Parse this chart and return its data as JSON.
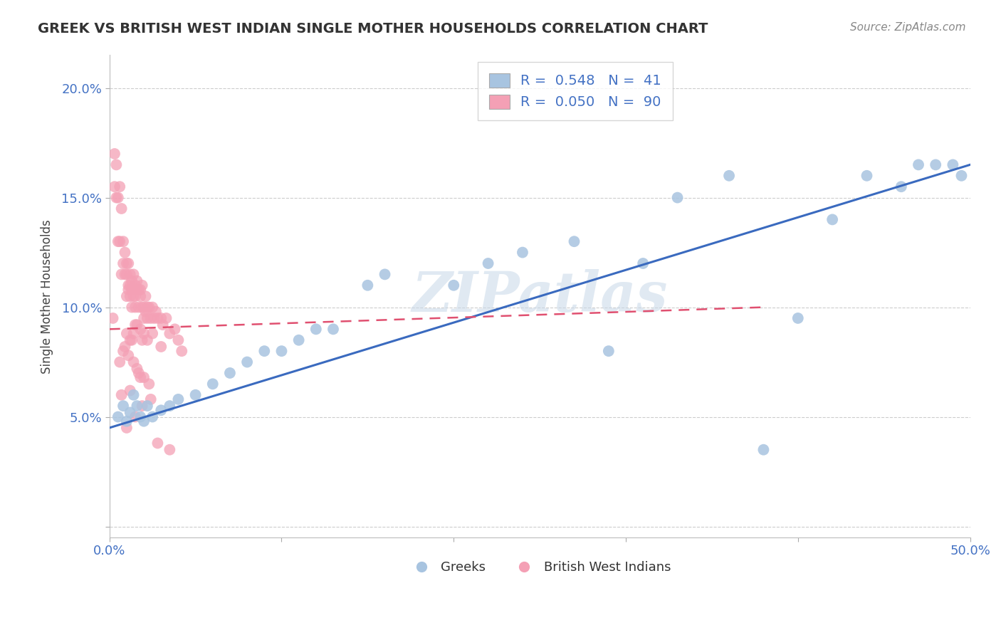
{
  "title": "GREEK VS BRITISH WEST INDIAN SINGLE MOTHER HOUSEHOLDS CORRELATION CHART",
  "source": "Source: ZipAtlas.com",
  "ylabel": "Single Mother Households",
  "xlim": [
    0.0,
    0.5
  ],
  "ylim": [
    -0.005,
    0.215
  ],
  "background_color": "#ffffff",
  "grid_color": "#cccccc",
  "watermark": "ZIPatlas",
  "blue_color": "#a8c4e0",
  "pink_color": "#f4a0b5",
  "blue_line_color": "#3a6abf",
  "pink_line_color": "#e05070",
  "legend_blue_R": "0.548",
  "legend_blue_N": "41",
  "legend_pink_R": "0.050",
  "legend_pink_N": "90",
  "blue_line_x0": 0.0,
  "blue_line_y0": 0.045,
  "blue_line_x1": 0.5,
  "blue_line_y1": 0.165,
  "pink_line_x0": 0.0,
  "pink_line_y0": 0.09,
  "pink_line_x1": 0.38,
  "pink_line_y1": 0.1,
  "blue_x": [
    0.005,
    0.008,
    0.01,
    0.012,
    0.014,
    0.016,
    0.018,
    0.02,
    0.022,
    0.025,
    0.03,
    0.035,
    0.04,
    0.05,
    0.06,
    0.07,
    0.08,
    0.09,
    0.1,
    0.11,
    0.12,
    0.13,
    0.15,
    0.16,
    0.2,
    0.22,
    0.24,
    0.27,
    0.29,
    0.31,
    0.33,
    0.36,
    0.38,
    0.4,
    0.42,
    0.44,
    0.46,
    0.47,
    0.48,
    0.49,
    0.495
  ],
  "blue_y": [
    0.05,
    0.055,
    0.048,
    0.052,
    0.06,
    0.055,
    0.05,
    0.048,
    0.055,
    0.05,
    0.053,
    0.055,
    0.058,
    0.06,
    0.065,
    0.07,
    0.075,
    0.08,
    0.08,
    0.085,
    0.09,
    0.09,
    0.11,
    0.115,
    0.11,
    0.12,
    0.125,
    0.13,
    0.08,
    0.12,
    0.15,
    0.16,
    0.035,
    0.095,
    0.14,
    0.16,
    0.155,
    0.165,
    0.165,
    0.165,
    0.16
  ],
  "pink_x": [
    0.002,
    0.003,
    0.003,
    0.004,
    0.004,
    0.005,
    0.005,
    0.006,
    0.006,
    0.007,
    0.007,
    0.008,
    0.008,
    0.009,
    0.009,
    0.01,
    0.01,
    0.01,
    0.011,
    0.011,
    0.011,
    0.012,
    0.012,
    0.012,
    0.013,
    0.013,
    0.013,
    0.014,
    0.014,
    0.014,
    0.015,
    0.015,
    0.015,
    0.016,
    0.016,
    0.017,
    0.017,
    0.018,
    0.018,
    0.019,
    0.019,
    0.02,
    0.02,
    0.021,
    0.021,
    0.022,
    0.022,
    0.023,
    0.024,
    0.025,
    0.026,
    0.027,
    0.028,
    0.03,
    0.031,
    0.033,
    0.035,
    0.038,
    0.04,
    0.042,
    0.018,
    0.019,
    0.016,
    0.014,
    0.022,
    0.02,
    0.015,
    0.013,
    0.025,
    0.03,
    0.01,
    0.012,
    0.008,
    0.006,
    0.009,
    0.011,
    0.014,
    0.017,
    0.02,
    0.016,
    0.023,
    0.018,
    0.012,
    0.007,
    0.024,
    0.019,
    0.015,
    0.01,
    0.028,
    0.035
  ],
  "pink_y": [
    0.095,
    0.17,
    0.155,
    0.165,
    0.15,
    0.15,
    0.13,
    0.155,
    0.13,
    0.145,
    0.115,
    0.13,
    0.12,
    0.115,
    0.125,
    0.12,
    0.115,
    0.105,
    0.11,
    0.12,
    0.108,
    0.11,
    0.105,
    0.115,
    0.108,
    0.112,
    0.1,
    0.108,
    0.115,
    0.105,
    0.11,
    0.1,
    0.105,
    0.108,
    0.112,
    0.108,
    0.1,
    0.105,
    0.108,
    0.11,
    0.1,
    0.095,
    0.1,
    0.105,
    0.098,
    0.1,
    0.095,
    0.1,
    0.095,
    0.1,
    0.095,
    0.098,
    0.095,
    0.095,
    0.092,
    0.095,
    0.088,
    0.09,
    0.085,
    0.08,
    0.09,
    0.085,
    0.092,
    0.088,
    0.085,
    0.088,
    0.092,
    0.085,
    0.088,
    0.082,
    0.088,
    0.085,
    0.08,
    0.075,
    0.082,
    0.078,
    0.075,
    0.07,
    0.068,
    0.072,
    0.065,
    0.068,
    0.062,
    0.06,
    0.058,
    0.055,
    0.05,
    0.045,
    0.038,
    0.035
  ]
}
